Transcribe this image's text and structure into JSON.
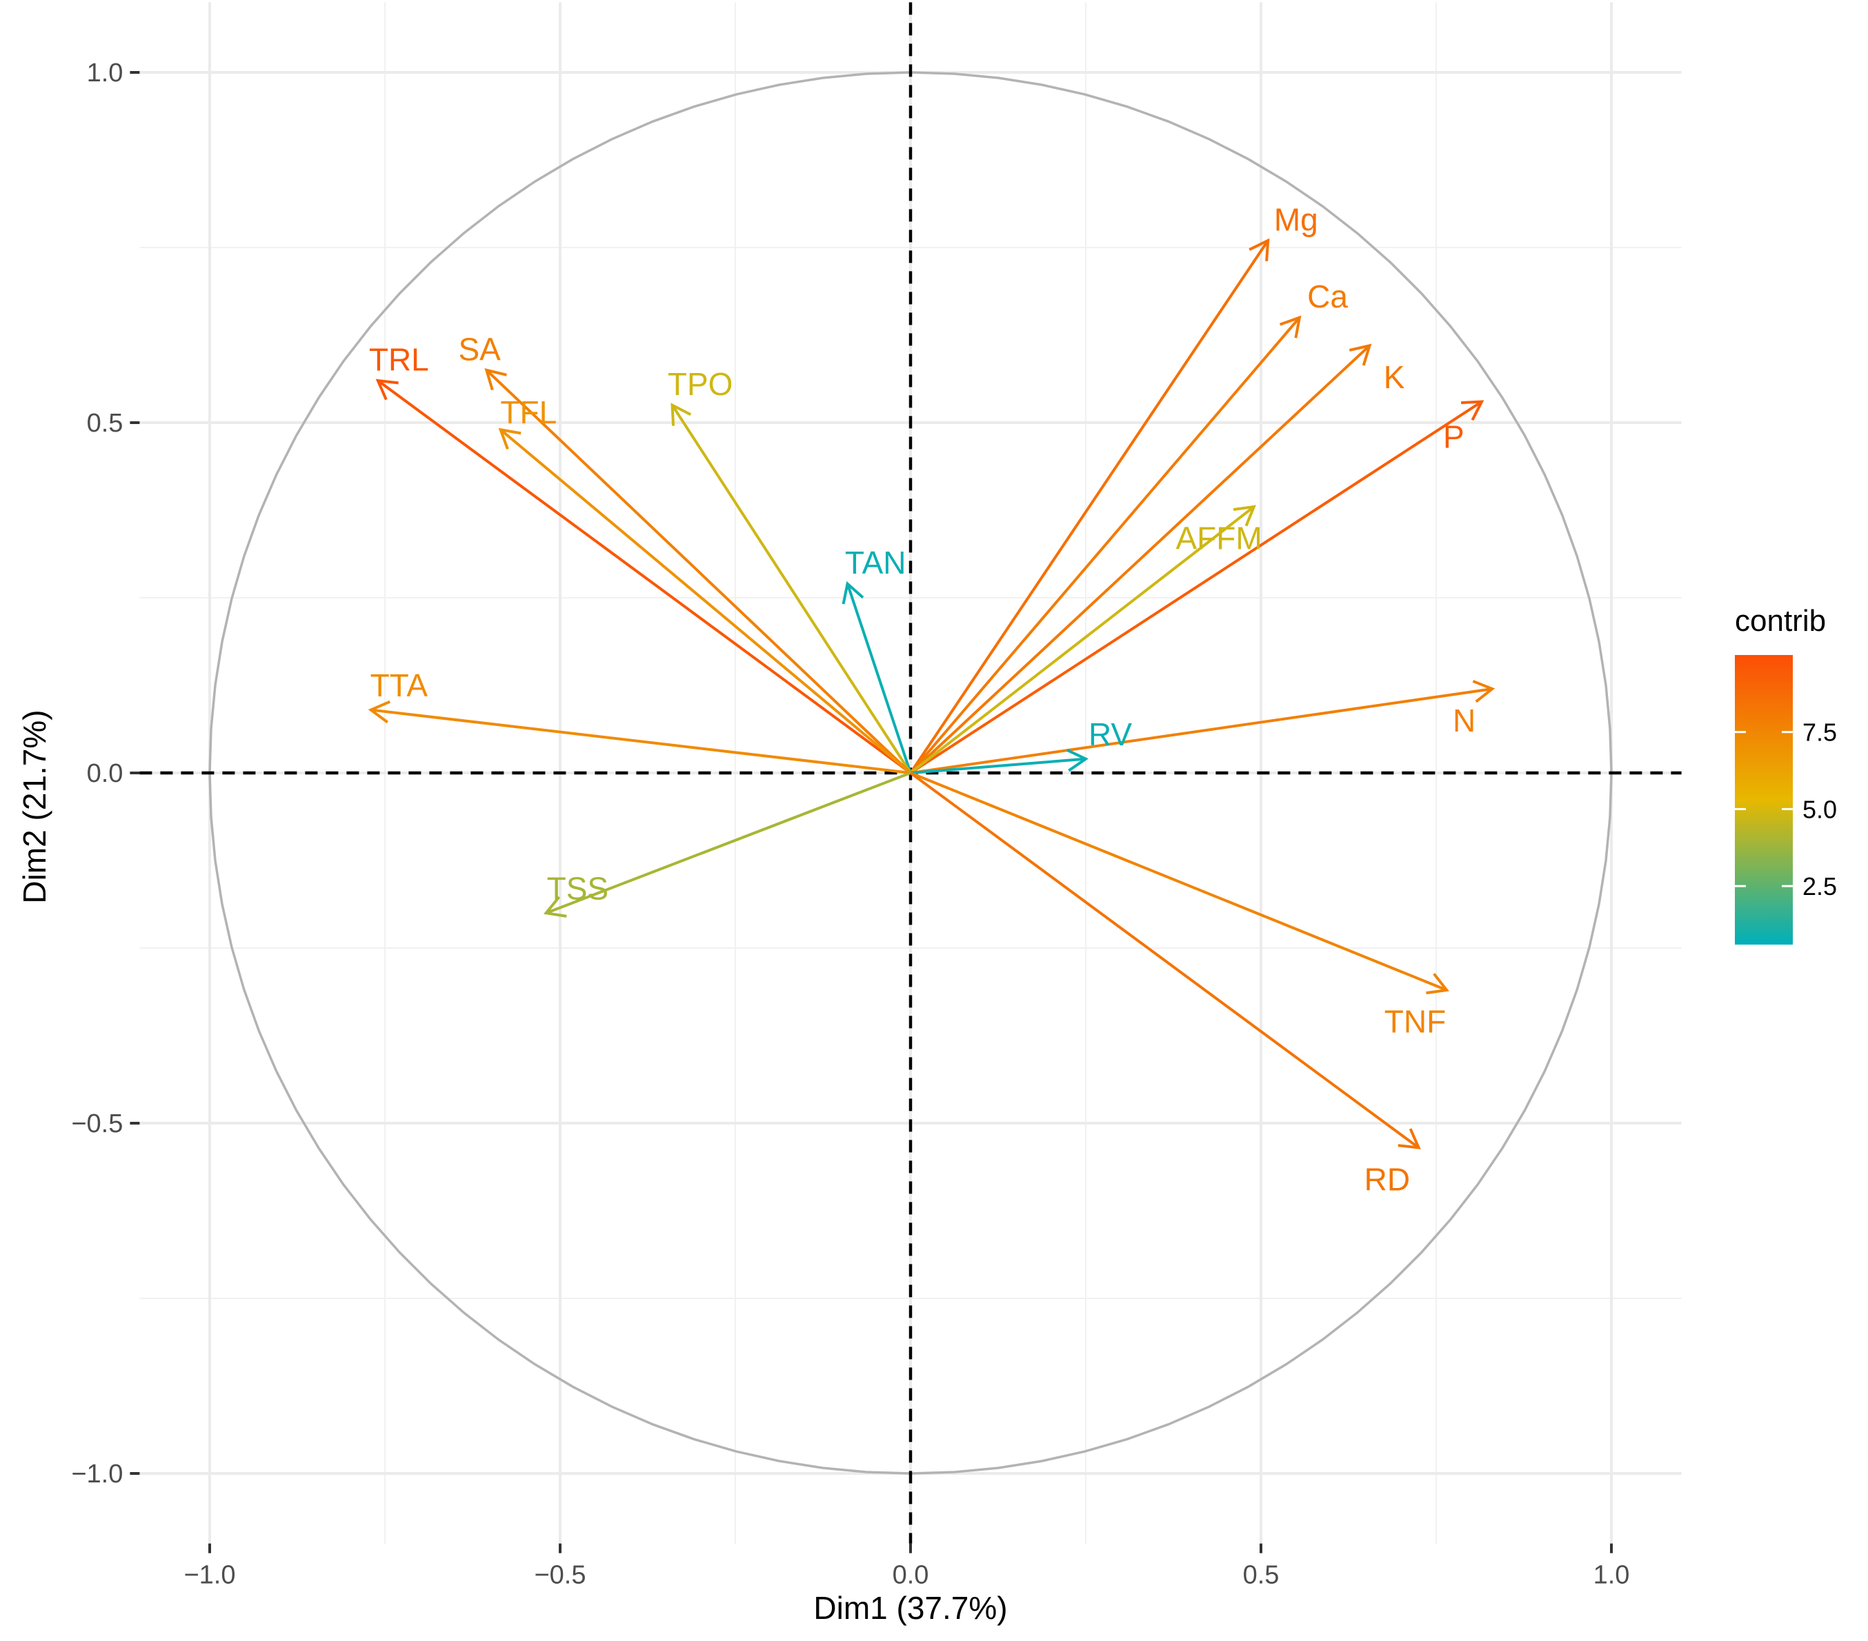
{
  "chart_data": {
    "type": "scatter",
    "subtype": "pca-correlation-circle",
    "title": "",
    "xlabel": "Dim1 (37.7%)",
    "ylabel": "Dim2 (21.7%)",
    "xlim": [
      -1.0,
      1.0
    ],
    "ylim": [
      -1.0,
      1.0
    ],
    "x_ticks": [
      "−1.0",
      "−0.5",
      "0.0",
      "0.5",
      "1.0"
    ],
    "y_ticks": [
      "−1.0",
      "−0.5",
      "0.0",
      "0.5",
      "1.0"
    ],
    "grid": true,
    "legend": {
      "title": "contrib",
      "position": "right",
      "range": [
        0.6,
        10.0
      ],
      "ticks": [
        2.5,
        5.0,
        7.5
      ],
      "tick_labels": [
        "2.5",
        "5.0",
        "7.5"
      ],
      "color_low": "#00AFBB",
      "color_mid": "#E7B800",
      "color_high": "#FC4E07",
      "mid_value": 5.3
    },
    "variables": [
      {
        "name": "Mg",
        "x": 0.51,
        "y": 0.76,
        "contrib": 8.5,
        "lx": 0.55,
        "ly": 0.79
      },
      {
        "name": "Ca",
        "x": 0.555,
        "y": 0.65,
        "contrib": 8.0,
        "lx": 0.595,
        "ly": 0.68
      },
      {
        "name": "K",
        "x": 0.655,
        "y": 0.61,
        "contrib": 8.1,
        "lx": 0.69,
        "ly": 0.565
      },
      {
        "name": "P",
        "x": 0.815,
        "y": 0.53,
        "contrib": 9.3,
        "lx": 0.775,
        "ly": 0.48
      },
      {
        "name": "AFFM",
        "x": 0.49,
        "y": 0.38,
        "contrib": 4.8,
        "lx": 0.44,
        "ly": 0.335
      },
      {
        "name": "N",
        "x": 0.83,
        "y": 0.12,
        "contrib": 7.8,
        "lx": 0.79,
        "ly": 0.075
      },
      {
        "name": "RV",
        "x": 0.25,
        "y": 0.02,
        "contrib": 0.8,
        "lx": 0.285,
        "ly": 0.055
      },
      {
        "name": "TAN",
        "x": -0.09,
        "y": 0.27,
        "contrib": 0.8,
        "lx": -0.05,
        "ly": 0.3
      },
      {
        "name": "TPO",
        "x": -0.34,
        "y": 0.525,
        "contrib": 4.8,
        "lx": -0.3,
        "ly": 0.555
      },
      {
        "name": "TRL",
        "x": -0.76,
        "y": 0.56,
        "contrib": 9.6,
        "lx": -0.73,
        "ly": 0.59
      },
      {
        "name": "SA",
        "x": -0.605,
        "y": 0.575,
        "contrib": 7.8,
        "lx": -0.615,
        "ly": 0.605
      },
      {
        "name": "TFL",
        "x": -0.585,
        "y": 0.49,
        "contrib": 7.0,
        "lx": -0.545,
        "ly": 0.515
      },
      {
        "name": "TTA",
        "x": -0.77,
        "y": 0.09,
        "contrib": 7.3,
        "lx": -0.73,
        "ly": 0.125
      },
      {
        "name": "TSS",
        "x": -0.52,
        "y": -0.2,
        "contrib": 4.0,
        "lx": -0.475,
        "ly": -0.165
      },
      {
        "name": "TNF",
        "x": 0.765,
        "y": -0.31,
        "contrib": 7.6,
        "lx": 0.72,
        "ly": -0.355
      },
      {
        "name": "RD",
        "x": 0.725,
        "y": -0.535,
        "contrib": 8.3,
        "lx": 0.68,
        "ly": -0.58
      }
    ]
  }
}
